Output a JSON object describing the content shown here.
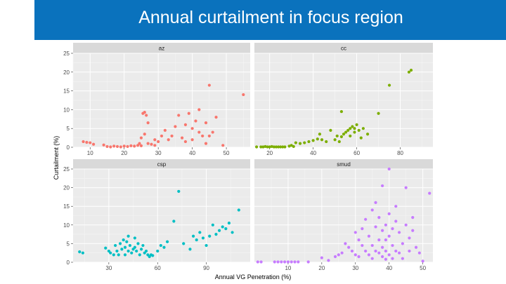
{
  "slide": {
    "title": "Annual curtailment in focus region",
    "title_bar_color": "#0a72bd"
  },
  "chart_data": {
    "type": "scatter",
    "layout": "facet_wrap_2x2",
    "title": "",
    "xlabel": "Annual VG Penetration (%)",
    "ylabel": "Curtailment (%)",
    "ylim": [
      0,
      25
    ],
    "yticks": [
      0,
      5,
      10,
      15,
      20,
      25
    ],
    "grid": true,
    "facet_scales": "free_x",
    "panels": [
      {
        "name": "az",
        "color": "#f8766d",
        "xlim": [
          5,
          57
        ],
        "xticks": [
          10,
          20,
          30,
          40,
          50
        ],
        "points": [
          [
            8,
            1.5
          ],
          [
            9,
            1.3
          ],
          [
            10,
            1.2
          ],
          [
            11,
            0.8
          ],
          [
            14,
            0.6
          ],
          [
            15,
            0.2
          ],
          [
            16,
            0.1
          ],
          [
            17,
            0.3
          ],
          [
            18,
            0.2
          ],
          [
            19,
            0.1
          ],
          [
            20,
            0.3
          ],
          [
            21,
            0.2
          ],
          [
            22,
            0.4
          ],
          [
            23,
            0.3
          ],
          [
            24,
            0.5
          ],
          [
            24.5,
            1
          ],
          [
            25,
            2.5
          ],
          [
            25,
            0.4
          ],
          [
            25.5,
            9
          ],
          [
            26,
            9.3
          ],
          [
            26.5,
            8.5
          ],
          [
            27,
            6.5
          ],
          [
            26,
            3.5
          ],
          [
            27,
            1
          ],
          [
            28,
            0.8
          ],
          [
            29,
            2
          ],
          [
            29,
            0.5
          ],
          [
            30,
            1.5
          ],
          [
            31,
            3
          ],
          [
            32,
            4.5
          ],
          [
            33,
            2
          ],
          [
            34,
            3
          ],
          [
            35,
            5.5
          ],
          [
            36,
            8.5
          ],
          [
            37,
            2.5
          ],
          [
            38,
            6
          ],
          [
            38,
            1.5
          ],
          [
            39,
            9
          ],
          [
            40,
            5
          ],
          [
            40,
            2
          ],
          [
            41,
            7
          ],
          [
            42,
            4
          ],
          [
            42,
            10
          ],
          [
            43,
            3
          ],
          [
            44,
            6.5
          ],
          [
            44,
            1
          ],
          [
            45,
            3
          ],
          [
            45,
            16.5
          ],
          [
            46,
            4
          ],
          [
            47,
            8
          ],
          [
            49,
            0.5
          ],
          [
            55,
            14
          ]
        ]
      },
      {
        "name": "cc",
        "color": "#7cae00",
        "xlim": [
          13,
          95
        ],
        "xticks": [
          20,
          40,
          60,
          80
        ],
        "points": [
          [
            14,
            0.1
          ],
          [
            16,
            0.1
          ],
          [
            17,
            0.1
          ],
          [
            18,
            0.2
          ],
          [
            19,
            0.1
          ],
          [
            20,
            0.1
          ],
          [
            21,
            0.2
          ],
          [
            22,
            0.1
          ],
          [
            23,
            0.1
          ],
          [
            24,
            0.1
          ],
          [
            25,
            0.1
          ],
          [
            26,
            0.1
          ],
          [
            27,
            0.1
          ],
          [
            29,
            0.3
          ],
          [
            30,
            0.5
          ],
          [
            31,
            0.2
          ],
          [
            32,
            1.2
          ],
          [
            34,
            1
          ],
          [
            36,
            1.2
          ],
          [
            38,
            1.5
          ],
          [
            40,
            1.8
          ],
          [
            42,
            2.2
          ],
          [
            43,
            3.5
          ],
          [
            44,
            2
          ],
          [
            46,
            1.5
          ],
          [
            48,
            4.5
          ],
          [
            50,
            2
          ],
          [
            51,
            3
          ],
          [
            52,
            1.5
          ],
          [
            53,
            2.8
          ],
          [
            53,
            9.5
          ],
          [
            54,
            3.5
          ],
          [
            55,
            4
          ],
          [
            56,
            4.5
          ],
          [
            57,
            5
          ],
          [
            57,
            3
          ],
          [
            58,
            5.5
          ],
          [
            59,
            4
          ],
          [
            59,
            5
          ],
          [
            60,
            6
          ],
          [
            61,
            4.5
          ],
          [
            62,
            2.5
          ],
          [
            63,
            5
          ],
          [
            65,
            3.5
          ],
          [
            70,
            9
          ],
          [
            75,
            16.5
          ],
          [
            84,
            20
          ],
          [
            85,
            20.5
          ]
        ]
      },
      {
        "name": "csp",
        "color": "#00bfc4",
        "xlim": [
          8,
          117
        ],
        "xticks": [
          30,
          60,
          90
        ],
        "points": [
          [
            12,
            2.8
          ],
          [
            14,
            2.5
          ],
          [
            28,
            3.8
          ],
          [
            30,
            3
          ],
          [
            31,
            2.5
          ],
          [
            33,
            2
          ],
          [
            34,
            4.5
          ],
          [
            35,
            3
          ],
          [
            36,
            2
          ],
          [
            37,
            5
          ],
          [
            38,
            3.5
          ],
          [
            39,
            6
          ],
          [
            40,
            4
          ],
          [
            40,
            2
          ],
          [
            41,
            5.5
          ],
          [
            42,
            3
          ],
          [
            42,
            7
          ],
          [
            43,
            4.5
          ],
          [
            44,
            2.5
          ],
          [
            45,
            3.5
          ],
          [
            46,
            4
          ],
          [
            46,
            6.5
          ],
          [
            47,
            3
          ],
          [
            48,
            5
          ],
          [
            49,
            2
          ],
          [
            50,
            3.5
          ],
          [
            51,
            4.5
          ],
          [
            52,
            2.5
          ],
          [
            53,
            3
          ],
          [
            54,
            2
          ],
          [
            55,
            1.5
          ],
          [
            56,
            2
          ],
          [
            57,
            1.8
          ],
          [
            60,
            3
          ],
          [
            62,
            4.5
          ],
          [
            64,
            4
          ],
          [
            66,
            5.5
          ],
          [
            70,
            11
          ],
          [
            73,
            19
          ],
          [
            76,
            5
          ],
          [
            80,
            3.5
          ],
          [
            82,
            7
          ],
          [
            84,
            6
          ],
          [
            86,
            8
          ],
          [
            88,
            6.5
          ],
          [
            90,
            4.5
          ],
          [
            92,
            7
          ],
          [
            94,
            10
          ],
          [
            96,
            7.5
          ],
          [
            98,
            8.5
          ],
          [
            100,
            9.5
          ],
          [
            102,
            9
          ],
          [
            104,
            10.5
          ],
          [
            106,
            8
          ],
          [
            110,
            14
          ]
        ]
      },
      {
        "name": "smud",
        "color": "#c77cff",
        "xlim": [
          0,
          53
        ],
        "xticks": [
          10,
          20,
          30,
          40,
          50
        ],
        "points": [
          [
            1,
            0.1
          ],
          [
            2,
            0.1
          ],
          [
            6,
            0.1
          ],
          [
            7,
            0.1
          ],
          [
            8,
            0.1
          ],
          [
            9,
            0.1
          ],
          [
            10,
            0.1
          ],
          [
            11,
            0.1
          ],
          [
            12,
            0.1
          ],
          [
            13,
            0.1
          ],
          [
            16,
            0.1
          ],
          [
            20,
            1.2
          ],
          [
            22,
            0.5
          ],
          [
            24,
            1.5
          ],
          [
            25,
            2
          ],
          [
            26,
            2.5
          ],
          [
            27,
            5
          ],
          [
            28,
            4
          ],
          [
            29,
            3
          ],
          [
            30,
            2
          ],
          [
            30,
            8
          ],
          [
            31,
            6
          ],
          [
            31,
            1.5
          ],
          [
            32,
            9
          ],
          [
            32,
            4.5
          ],
          [
            33,
            3
          ],
          [
            33,
            11.5
          ],
          [
            34,
            2
          ],
          [
            34,
            7
          ],
          [
            35,
            14
          ],
          [
            35,
            4.5
          ],
          [
            35,
            1
          ],
          [
            36,
            9.5
          ],
          [
            36,
            3
          ],
          [
            36,
            16
          ],
          [
            37,
            12
          ],
          [
            37,
            6
          ],
          [
            37,
            2.5
          ],
          [
            38,
            20.5
          ],
          [
            38,
            8.5
          ],
          [
            38,
            4
          ],
          [
            38,
            1.5
          ],
          [
            39,
            10
          ],
          [
            39,
            6
          ],
          [
            39,
            3
          ],
          [
            39,
            0.8
          ],
          [
            40,
            25
          ],
          [
            40,
            13
          ],
          [
            40,
            7
          ],
          [
            40,
            2
          ],
          [
            41,
            9
          ],
          [
            41,
            4.5
          ],
          [
            41,
            1
          ],
          [
            42,
            15
          ],
          [
            42,
            11
          ],
          [
            42,
            3
          ],
          [
            43,
            8
          ],
          [
            43,
            2.5
          ],
          [
            44,
            5
          ],
          [
            44,
            1
          ],
          [
            45,
            20
          ],
          [
            45,
            10
          ],
          [
            46,
            6.5
          ],
          [
            46,
            3
          ],
          [
            47,
            12
          ],
          [
            47,
            8.5
          ],
          [
            48,
            4
          ],
          [
            49,
            2.5
          ],
          [
            50,
            0.3
          ],
          [
            52,
            18.5
          ]
        ]
      }
    ]
  }
}
